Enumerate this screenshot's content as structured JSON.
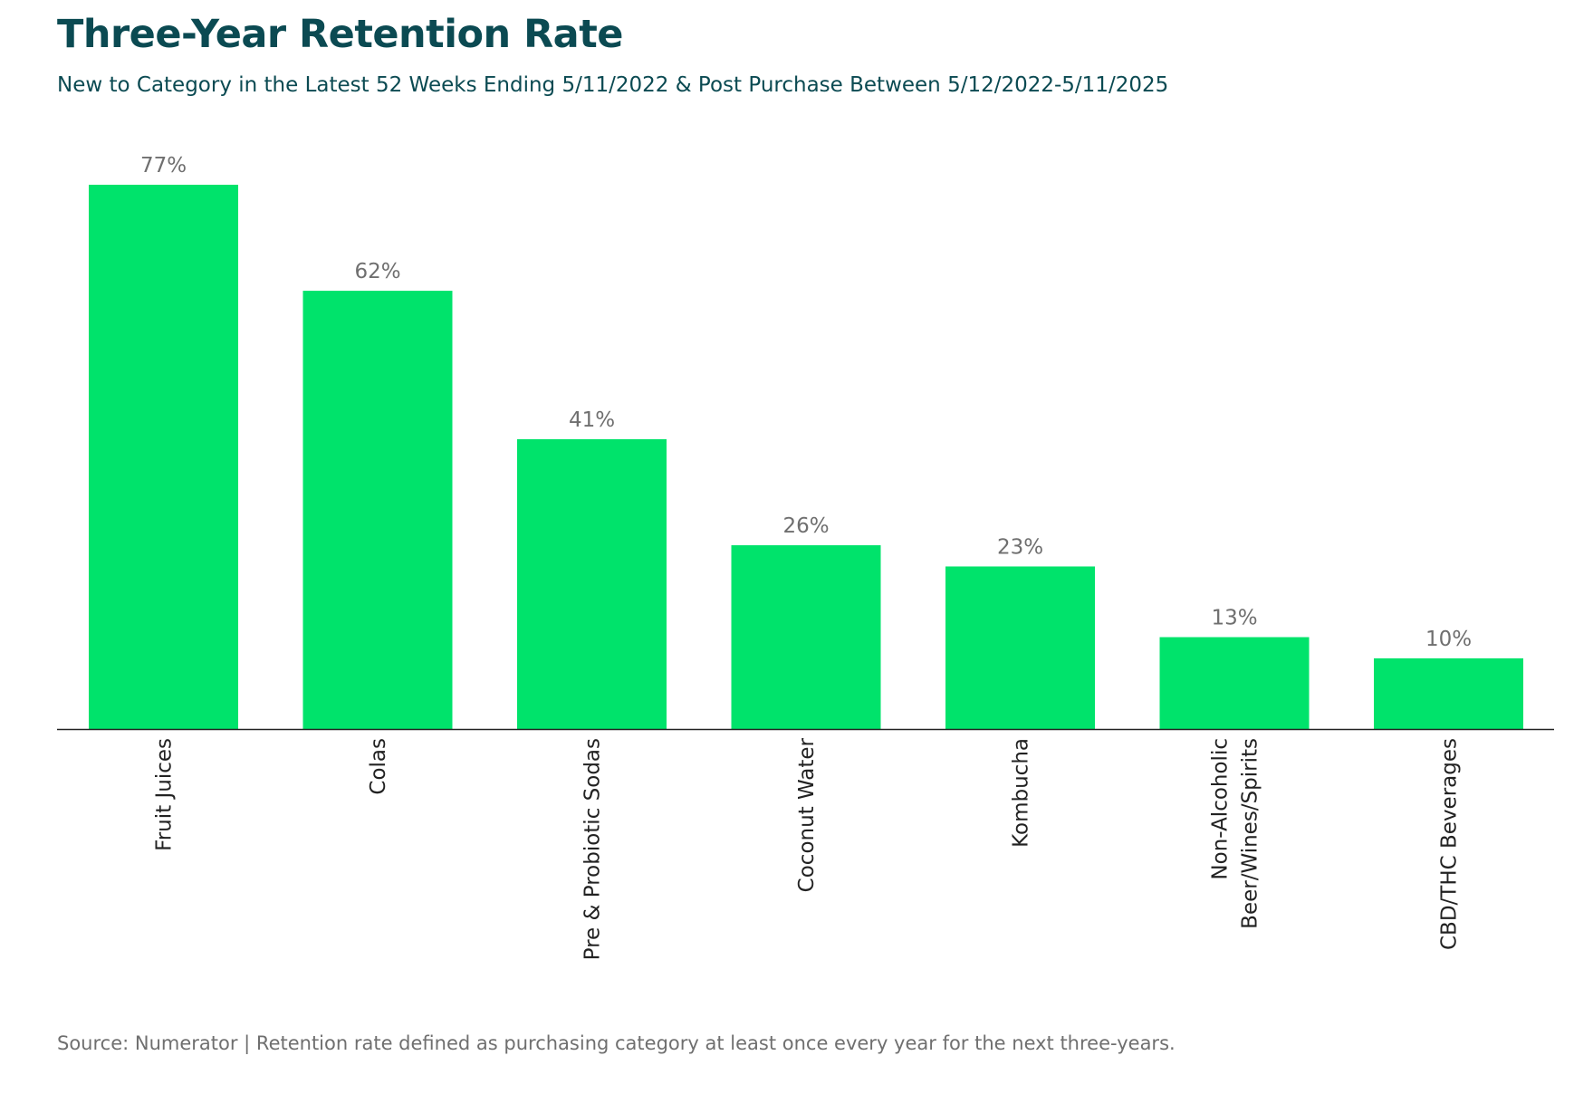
{
  "header": {
    "title": "Three-Year Retention Rate",
    "subtitle": "New to Category in the Latest 52 Weeks Ending 5/11/2022 & Post Purchase Between 5/12/2022-5/11/2025"
  },
  "footer": {
    "source": "Source: Numerator | Retention rate defined as purchasing category at least once every year for the next three-years."
  },
  "colors": {
    "title": "#0b4a52",
    "subtitle": "#0b4a52",
    "bar": "#00e36b",
    "value_label": "#6f6f6f",
    "tick_label": "#222222",
    "axis": "#222222",
    "source": "#6f6f6f"
  },
  "chart_data": {
    "type": "bar",
    "categories": [
      "Fruit Juices",
      "Colas",
      "Pre & Probiotic Sodas",
      "Coconut Water",
      "Kombucha",
      "Non-Alcoholic Beer/Wines/Spirits",
      "CBD/THC Beverages"
    ],
    "category_label_lines": [
      [
        "Fruit Juices"
      ],
      [
        "Colas"
      ],
      [
        "Pre & Probiotic Sodas"
      ],
      [
        "Coconut Water"
      ],
      [
        "Kombucha"
      ],
      [
        "Non-Alcoholic",
        "Beer/Wines/Spirits"
      ],
      [
        "CBD/THC Beverages"
      ]
    ],
    "values": [
      77,
      62,
      41,
      26,
      23,
      13,
      10
    ],
    "data_labels": [
      "77%",
      "62%",
      "41%",
      "26%",
      "23%",
      "13%",
      "10%"
    ],
    "title": "Three-Year Retention Rate",
    "xlabel": "",
    "ylabel": "",
    "ylim": [
      0,
      77
    ],
    "unit": "%",
    "grid": false,
    "legend": "none",
    "x_tick_rotation": "vertical"
  }
}
